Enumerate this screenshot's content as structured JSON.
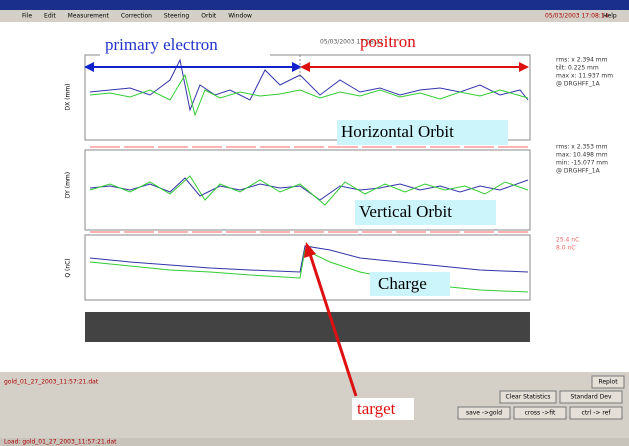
{
  "window": {
    "menu": [
      "File",
      "Edit",
      "Measurement",
      "Correction",
      "Steering",
      "Orbit",
      "Window"
    ],
    "clock": "05/03/2003 17:08:14",
    "help": "Help"
  },
  "plot": {
    "stamp": "05/03/2003 17:08:11",
    "axis_labels": [
      "DX (mm)",
      "DY (mm)",
      "Q (nC)"
    ],
    "side_info": [
      [
        "rms: x 2.394 mm",
        "tilt: 0.225 mm",
        "max x: 11.937 mm",
        "@ DRGHFF_1A"
      ],
      [
        "rms: x 2.353 mm",
        "max: 10.498 mm",
        "min: -15.077 mm",
        "@ DRGHFF_1A"
      ],
      [
        "25.4 nC",
        "8.0 nC"
      ]
    ]
  },
  "annotations": {
    "primary": "primary electron",
    "positron": "positron",
    "horizontal": "Horizontal Orbit",
    "vertical": "Vertical Orbit",
    "charge": "Charge",
    "target": "target"
  },
  "controls": {
    "file": "gold_01_27_2003_11:57:21.dat",
    "buttons": [
      "Clear Statistics",
      "Standard Dev"
    ],
    "keys": [
      "Replot"
    ],
    "moves": [
      "save ->gold",
      "cross ->fit",
      "ctrl -> ref"
    ]
  },
  "status": "Load: gold_01_27_2003_11:57:21.dat"
}
